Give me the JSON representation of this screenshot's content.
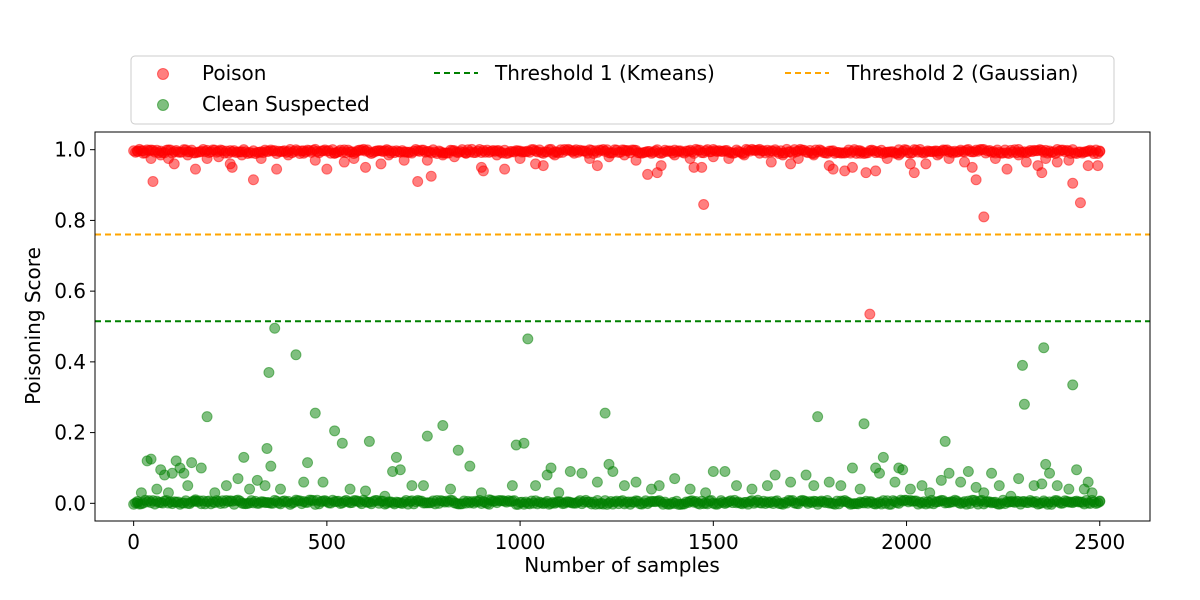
{
  "chart_data": {
    "type": "scatter",
    "xlabel": "Number of samples",
    "ylabel": "Poisoning Score",
    "xlim": [
      -100,
      2630
    ],
    "ylim": [
      -0.05,
      1.05
    ],
    "x_ticks": [
      0,
      500,
      1000,
      1500,
      2000,
      2500
    ],
    "x_tick_labels": [
      "0",
      "500",
      "1000",
      "1500",
      "2000",
      "2500"
    ],
    "y_ticks": [
      0.0,
      0.2,
      0.4,
      0.6,
      0.8,
      1.0
    ],
    "y_tick_labels": [
      "0.0",
      "0.2",
      "0.4",
      "0.6",
      "0.8",
      "1.0"
    ],
    "grid": false,
    "legend_position": "above-plot",
    "series": [
      {
        "name": "Poison",
        "color": "#ff0000",
        "alpha": 0.5,
        "points": [
          [
            10,
            0.995
          ],
          [
            25,
            0.99
          ],
          [
            45,
            0.975
          ],
          [
            50,
            0.91
          ],
          [
            70,
            0.985
          ],
          [
            90,
            0.975
          ],
          [
            105,
            0.96
          ],
          [
            140,
            0.985
          ],
          [
            160,
            0.945
          ],
          [
            190,
            0.975
          ],
          [
            220,
            0.98
          ],
          [
            250,
            0.96
          ],
          [
            255,
            0.95
          ],
          [
            280,
            0.985
          ],
          [
            310,
            0.915
          ],
          [
            330,
            0.975
          ],
          [
            370,
            0.945
          ],
          [
            400,
            0.985
          ],
          [
            440,
            0.99
          ],
          [
            470,
            0.97
          ],
          [
            500,
            0.945
          ],
          [
            520,
            0.99
          ],
          [
            545,
            0.965
          ],
          [
            570,
            0.975
          ],
          [
            600,
            0.95
          ],
          [
            640,
            0.96
          ],
          [
            660,
            0.985
          ],
          [
            700,
            0.97
          ],
          [
            735,
            0.91
          ],
          [
            760,
            0.97
          ],
          [
            770,
            0.925
          ],
          [
            800,
            0.985
          ],
          [
            830,
            0.98
          ],
          [
            860,
            0.99
          ],
          [
            900,
            0.95
          ],
          [
            905,
            0.94
          ],
          [
            940,
            0.985
          ],
          [
            960,
            0.945
          ],
          [
            1000,
            0.975
          ],
          [
            1040,
            0.96
          ],
          [
            1060,
            0.955
          ],
          [
            1090,
            0.985
          ],
          [
            1140,
            0.99
          ],
          [
            1180,
            0.975
          ],
          [
            1200,
            0.955
          ],
          [
            1230,
            0.98
          ],
          [
            1270,
            0.985
          ],
          [
            1300,
            0.97
          ],
          [
            1330,
            0.93
          ],
          [
            1355,
            0.935
          ],
          [
            1365,
            0.955
          ],
          [
            1400,
            0.985
          ],
          [
            1440,
            0.975
          ],
          [
            1450,
            0.95
          ],
          [
            1470,
            0.95
          ],
          [
            1475,
            0.845
          ],
          [
            1500,
            0.98
          ],
          [
            1540,
            0.975
          ],
          [
            1580,
            0.985
          ],
          [
            1620,
            0.99
          ],
          [
            1650,
            0.965
          ],
          [
            1680,
            0.985
          ],
          [
            1700,
            0.96
          ],
          [
            1720,
            0.975
          ],
          [
            1760,
            0.985
          ],
          [
            1800,
            0.955
          ],
          [
            1810,
            0.945
          ],
          [
            1840,
            0.94
          ],
          [
            1860,
            0.95
          ],
          [
            1880,
            0.99
          ],
          [
            1895,
            0.935
          ],
          [
            1905,
            0.535
          ],
          [
            1920,
            0.94
          ],
          [
            1950,
            0.975
          ],
          [
            1980,
            0.985
          ],
          [
            2010,
            0.96
          ],
          [
            2020,
            0.935
          ],
          [
            2050,
            0.96
          ],
          [
            2080,
            0.985
          ],
          [
            2110,
            0.975
          ],
          [
            2150,
            0.965
          ],
          [
            2170,
            0.95
          ],
          [
            2180,
            0.915
          ],
          [
            2200,
            0.81
          ],
          [
            2230,
            0.975
          ],
          [
            2260,
            0.945
          ],
          [
            2290,
            0.985
          ],
          [
            2310,
            0.965
          ],
          [
            2340,
            0.955
          ],
          [
            2350,
            0.935
          ],
          [
            2360,
            0.975
          ],
          [
            2390,
            0.965
          ],
          [
            2420,
            0.97
          ],
          [
            2430,
            0.905
          ],
          [
            2450,
            0.85
          ],
          [
            2470,
            0.955
          ],
          [
            2495,
            0.955
          ],
          [
            2500,
            0.995
          ]
        ]
      },
      {
        "name": "Clean Suspected",
        "color": "#008000",
        "alpha": 0.5,
        "points": [
          [
            10,
            0.005
          ],
          [
            20,
            0.03
          ],
          [
            35,
            0.12
          ],
          [
            45,
            0.125
          ],
          [
            60,
            0.04
          ],
          [
            70,
            0.095
          ],
          [
            80,
            0.08
          ],
          [
            90,
            0.03
          ],
          [
            100,
            0.085
          ],
          [
            110,
            0.12
          ],
          [
            120,
            0.1
          ],
          [
            130,
            0.085
          ],
          [
            140,
            0.05
          ],
          [
            150,
            0.115
          ],
          [
            160,
            0.01
          ],
          [
            175,
            0.1
          ],
          [
            190,
            0.245
          ],
          [
            210,
            0.03
          ],
          [
            240,
            0.05
          ],
          [
            270,
            0.07
          ],
          [
            285,
            0.13
          ],
          [
            300,
            0.04
          ],
          [
            320,
            0.065
          ],
          [
            340,
            0.05
          ],
          [
            345,
            0.155
          ],
          [
            350,
            0.37
          ],
          [
            355,
            0.105
          ],
          [
            365,
            0.495
          ],
          [
            380,
            0.04
          ],
          [
            420,
            0.42
          ],
          [
            440,
            0.06
          ],
          [
            450,
            0.115
          ],
          [
            470,
            0.255
          ],
          [
            490,
            0.06
          ],
          [
            520,
            0.205
          ],
          [
            540,
            0.17
          ],
          [
            560,
            0.04
          ],
          [
            600,
            0.035
          ],
          [
            610,
            0.175
          ],
          [
            650,
            0.02
          ],
          [
            670,
            0.09
          ],
          [
            680,
            0.13
          ],
          [
            690,
            0.095
          ],
          [
            720,
            0.05
          ],
          [
            750,
            0.05
          ],
          [
            760,
            0.19
          ],
          [
            800,
            0.22
          ],
          [
            820,
            0.04
          ],
          [
            840,
            0.15
          ],
          [
            870,
            0.105
          ],
          [
            900,
            0.03
          ],
          [
            920,
            0.01
          ],
          [
            980,
            0.05
          ],
          [
            990,
            0.165
          ],
          [
            1010,
            0.17
          ],
          [
            1020,
            0.465
          ],
          [
            1040,
            0.05
          ],
          [
            1070,
            0.08
          ],
          [
            1080,
            0.1
          ],
          [
            1100,
            0.03
          ],
          [
            1130,
            0.09
          ],
          [
            1160,
            0.085
          ],
          [
            1200,
            0.06
          ],
          [
            1220,
            0.255
          ],
          [
            1230,
            0.11
          ],
          [
            1240,
            0.09
          ],
          [
            1270,
            0.05
          ],
          [
            1300,
            0.06
          ],
          [
            1340,
            0.04
          ],
          [
            1360,
            0.05
          ],
          [
            1400,
            0.07
          ],
          [
            1440,
            0.04
          ],
          [
            1480,
            0.03
          ],
          [
            1500,
            0.09
          ],
          [
            1530,
            0.09
          ],
          [
            1560,
            0.05
          ],
          [
            1600,
            0.04
          ],
          [
            1640,
            0.05
          ],
          [
            1660,
            0.08
          ],
          [
            1700,
            0.06
          ],
          [
            1740,
            0.08
          ],
          [
            1760,
            0.05
          ],
          [
            1770,
            0.245
          ],
          [
            1800,
            0.06
          ],
          [
            1830,
            0.05
          ],
          [
            1860,
            0.1
          ],
          [
            1880,
            0.04
          ],
          [
            1890,
            0.225
          ],
          [
            1920,
            0.1
          ],
          [
            1930,
            0.085
          ],
          [
            1940,
            0.13
          ],
          [
            1970,
            0.06
          ],
          [
            1980,
            0.1
          ],
          [
            1990,
            0.095
          ],
          [
            2010,
            0.04
          ],
          [
            2040,
            0.05
          ],
          [
            2060,
            0.03
          ],
          [
            2090,
            0.065
          ],
          [
            2100,
            0.175
          ],
          [
            2110,
            0.085
          ],
          [
            2140,
            0.06
          ],
          [
            2160,
            0.09
          ],
          [
            2180,
            0.045
          ],
          [
            2200,
            0.03
          ],
          [
            2220,
            0.085
          ],
          [
            2240,
            0.05
          ],
          [
            2270,
            0.02
          ],
          [
            2290,
            0.07
          ],
          [
            2300,
            0.39
          ],
          [
            2305,
            0.28
          ],
          [
            2330,
            0.05
          ],
          [
            2350,
            0.055
          ],
          [
            2355,
            0.44
          ],
          [
            2360,
            0.11
          ],
          [
            2370,
            0.085
          ],
          [
            2390,
            0.05
          ],
          [
            2420,
            0.04
          ],
          [
            2430,
            0.335
          ],
          [
            2440,
            0.095
          ],
          [
            2460,
            0.04
          ],
          [
            2470,
            0.06
          ],
          [
            2480,
            0.03
          ],
          [
            2500,
            0.005
          ]
        ]
      }
    ],
    "dense_band": [
      {
        "series": "Poison",
        "y_center": 0.995,
        "y_spread": 0.012,
        "color": "#ff0000"
      },
      {
        "series": "Clean Suspected",
        "y_center": 0.003,
        "y_spread": 0.012,
        "color": "#008000"
      }
    ],
    "thresholds": [
      {
        "name": "Threshold 1 (Kmeans)",
        "value": 0.515,
        "color": "#008000",
        "style": "dashed"
      },
      {
        "name": "Threshold 2 (Gaussian)",
        "value": 0.76,
        "color": "#ffa500",
        "style": "dashed"
      }
    ]
  }
}
